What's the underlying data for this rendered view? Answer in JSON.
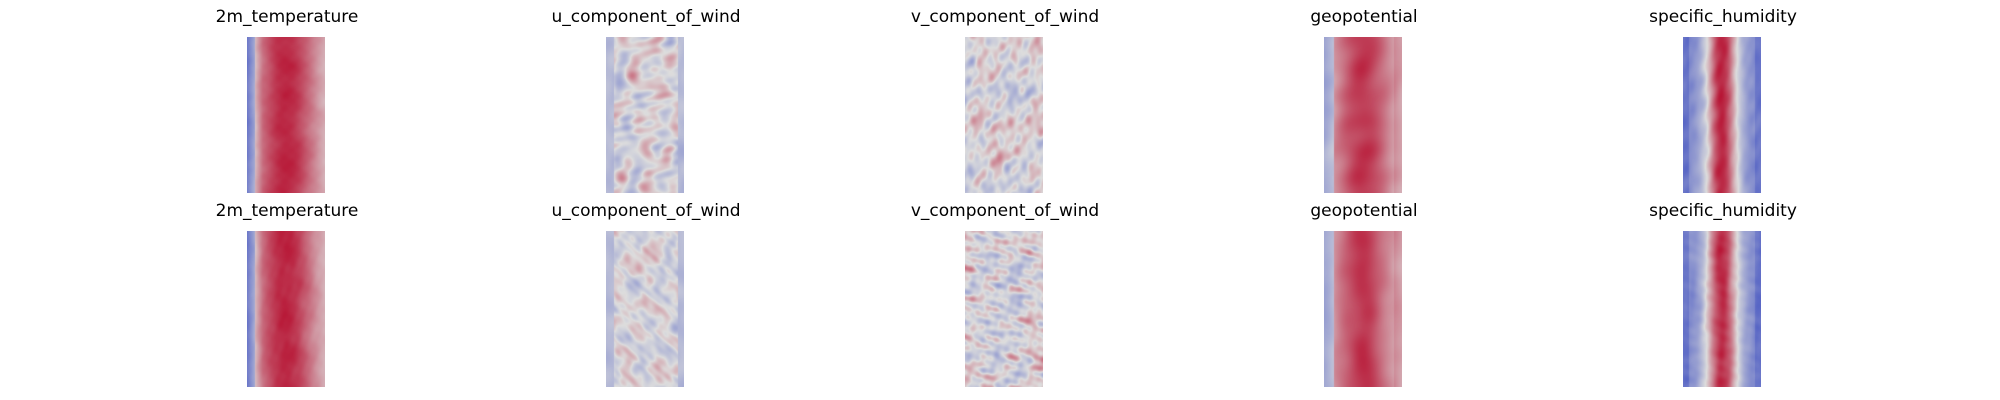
{
  "figure": {
    "colormap": "coolwarm",
    "colormap_low": "#3b4cc0",
    "colormap_mid": "#dddddd",
    "colormap_high": "#b40426",
    "rows": [
      {
        "panels": [
          {
            "title": "2m_temperature",
            "pattern": "temperature"
          },
          {
            "title": "u_component_of_wind",
            "pattern": "u_wind"
          },
          {
            "title": "v_component_of_wind",
            "pattern": "v_wind"
          },
          {
            "title": "geopotential",
            "pattern": "geopotential"
          },
          {
            "title": "specific_humidity",
            "pattern": "humidity"
          }
        ]
      },
      {
        "panels": [
          {
            "title": "2m_temperature",
            "pattern": "temperature"
          },
          {
            "title": "u_component_of_wind",
            "pattern": "u_wind"
          },
          {
            "title": "v_component_of_wind",
            "pattern": "v_wind"
          },
          {
            "title": "geopotential",
            "pattern": "geopotential"
          },
          {
            "title": "specific_humidity",
            "pattern": "humidity"
          }
        ]
      }
    ]
  }
}
